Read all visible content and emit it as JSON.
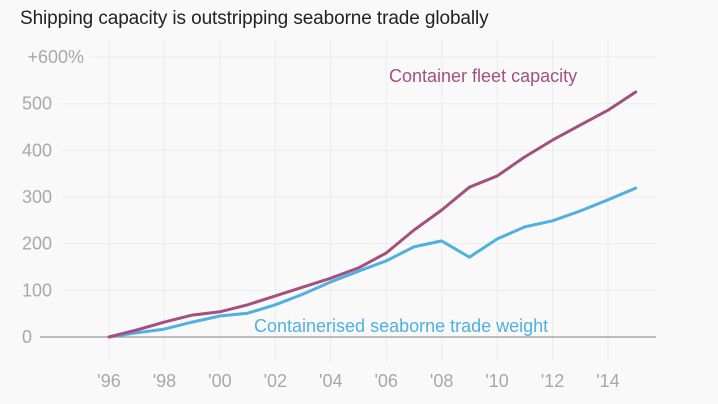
{
  "chart_data": {
    "type": "line",
    "title": "Shipping capacity is outstripping seaborne trade globally",
    "xlabel": "",
    "ylabel": "",
    "x": [
      1996,
      1997,
      1998,
      1999,
      2000,
      2001,
      2002,
      2003,
      2004,
      2005,
      2006,
      2007,
      2008,
      2009,
      2010,
      2011,
      2012,
      2013,
      2014,
      2015
    ],
    "xlim": [
      1996,
      2015
    ],
    "ylim": [
      0,
      600
    ],
    "grid": true,
    "x_ticks": [
      1996,
      1998,
      2000,
      2002,
      2004,
      2006,
      2008,
      2010,
      2012,
      2014
    ],
    "x_tick_labels": [
      "'96",
      "'98",
      "'00",
      "'02",
      "'04",
      "'06",
      "'08",
      "'10",
      "'12",
      "'14"
    ],
    "y_ticks": [
      0,
      100,
      200,
      300,
      400,
      500,
      600
    ],
    "y_tick_labels": [
      "0",
      "100",
      "200",
      "300",
      "400",
      "500",
      "+600%"
    ],
    "series": [
      {
        "name": "Container fleet capacity",
        "color": "#a4507f",
        "values": [
          0,
          15,
          32,
          47,
          54,
          69,
          88,
          107,
          126,
          148,
          180,
          229,
          272,
          321,
          345,
          386,
          422,
          454,
          486,
          525
        ]
      },
      {
        "name": "Containerised seaborne trade weight",
        "color": "#4fb0e1",
        "values": [
          0,
          9,
          17,
          32,
          45,
          51,
          69,
          92,
          118,
          141,
          163,
          193,
          206,
          171,
          210,
          236,
          249,
          270,
          294,
          319
        ]
      }
    ],
    "annotations": [
      {
        "text": "Container fleet capacity",
        "series": 0
      },
      {
        "text": "Containerised seaborne trade weight",
        "series": 1
      }
    ]
  }
}
